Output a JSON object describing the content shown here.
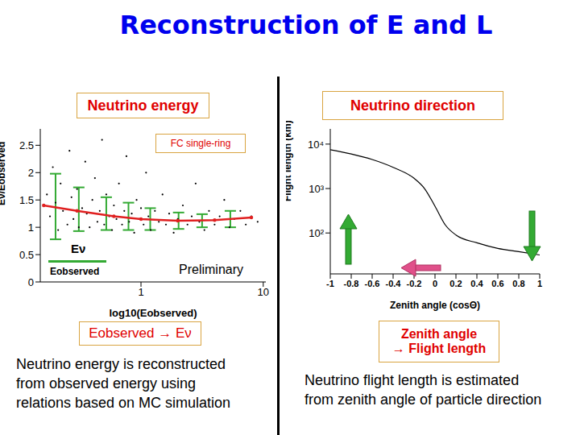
{
  "title": "Reconstruction of E and L",
  "panels": [
    {
      "heading": "Neutrino energy",
      "caption": "Eobserved → Eν",
      "description": [
        "Neutrino energy is reconstructed",
        "from observed energy using",
        "relations based on MC simulation"
      ]
    },
    {
      "heading": "Neutrino direction",
      "caption": [
        "Zenith angle",
        "→ Flight length"
      ],
      "description": [
        "Neutrino flight length is estimated",
        "from zenith angle of particle direction"
      ]
    }
  ],
  "chart_data": [
    {
      "type": "scatter",
      "annotations": [
        "FC single-ring",
        "Preliminary"
      ],
      "key_label": {
        "numerator": "Eν",
        "denominator": "Eobserved"
      },
      "x_label": "log10(Eobserved)",
      "y_label": "Eν/Eobserved",
      "log": "x",
      "xlim": [
        0.15,
        10.5
      ],
      "xticks": [
        1,
        10
      ],
      "ylim": [
        0,
        2.8
      ],
      "yticks": [
        0,
        0.5,
        1,
        1.5,
        2,
        2.5
      ],
      "series": [
        {
          "type": "scatter",
          "color": "#000000",
          "marker": "dot",
          "x": [
            0.17,
            0.18,
            0.19,
            0.2,
            0.21,
            0.22,
            0.23,
            0.25,
            0.26,
            0.27,
            0.28,
            0.3,
            0.31,
            0.33,
            0.35,
            0.36,
            0.38,
            0.4,
            0.42,
            0.44,
            0.46,
            0.48,
            0.5,
            0.52,
            0.55,
            0.58,
            0.6,
            0.63,
            0.66,
            0.7,
            0.73,
            0.76,
            0.8,
            0.84,
            0.88,
            0.92,
            0.96,
            1.0,
            1.05,
            1.1,
            1.15,
            1.2,
            1.3,
            1.4,
            1.5,
            1.6,
            1.7,
            1.85,
            2.0,
            2.2,
            2.4,
            2.6,
            2.8,
            3.0,
            3.3,
            3.6,
            4.0,
            4.4,
            4.8,
            5.3,
            5.8,
            6.5,
            7.2,
            8.0,
            9.0
          ],
          "values": [
            1.6,
            1.2,
            2.1,
            1.45,
            0.95,
            1.8,
            1.3,
            1.05,
            2.4,
            1.55,
            1.15,
            1.7,
            1.0,
            1.35,
            2.2,
            1.25,
            1.0,
            1.5,
            1.9,
            1.1,
            1.3,
            2.6,
            1.05,
            1.6,
            1.2,
            0.95,
            1.4,
            1.15,
            1.8,
            1.05,
            1.3,
            2.3,
            1.1,
            1.25,
            0.9,
            1.5,
            1.15,
            1.35,
            1.05,
            2.0,
            1.2,
            0.95,
            1.3,
            1.1,
            1.6,
            1.05,
            1.25,
            0.9,
            1.15,
            1.4,
            1.05,
            1.2,
            1.8,
            1.1,
            0.95,
            1.3,
            1.05,
            1.2,
            1.5,
            1.0,
            1.15,
            1.3,
            1.05,
            1.2,
            1.1
          ]
        },
        {
          "type": "errorbar",
          "color": "#33aa33",
          "x": [
            0.2,
            0.31,
            0.52,
            0.79,
            1.19,
            2.03,
            3.16,
            5.38
          ],
          "values": [
            1.38,
            1.33,
            1.25,
            1.2,
            1.15,
            1.12,
            1.12,
            1.15
          ],
          "errors": [
            0.6,
            0.4,
            0.3,
            0.25,
            0.2,
            0.15,
            0.12,
            0.15
          ]
        },
        {
          "type": "line",
          "color": "#e02020",
          "marker": "circle",
          "x": [
            0.16,
            0.3,
            0.6,
            1,
            2,
            4,
            8
          ],
          "values": [
            1.4,
            1.3,
            1.2,
            1.15,
            1.12,
            1.13,
            1.18
          ]
        }
      ]
    },
    {
      "type": "line",
      "x_label": "Zenith angle (cosΘ)",
      "y_label": "Flight length (km)",
      "log": "y",
      "xlim": [
        -1,
        1
      ],
      "xticks": [
        -1,
        -0.8,
        -0.6,
        -0.4,
        -0.2,
        0,
        0.2,
        0.4,
        0.6,
        0.8,
        1
      ],
      "ylim": [
        12,
        22000
      ],
      "yticks": [
        {
          "value": 100,
          "label": "10²"
        },
        {
          "value": 1000,
          "label": "10³"
        },
        {
          "value": 10000,
          "label": "10⁴"
        }
      ],
      "series": [
        {
          "color": "#000000",
          "line_style": "solid",
          "x": [
            -1,
            -0.8,
            -0.6,
            -0.4,
            -0.2,
            -0.1,
            0,
            0.1,
            0.2,
            0.4,
            0.6,
            0.8,
            1
          ],
          "values": [
            7500,
            6000,
            4500,
            3000,
            1700,
            1000,
            400,
            150,
            90,
            60,
            45,
            38,
            32
          ]
        }
      ]
    }
  ]
}
